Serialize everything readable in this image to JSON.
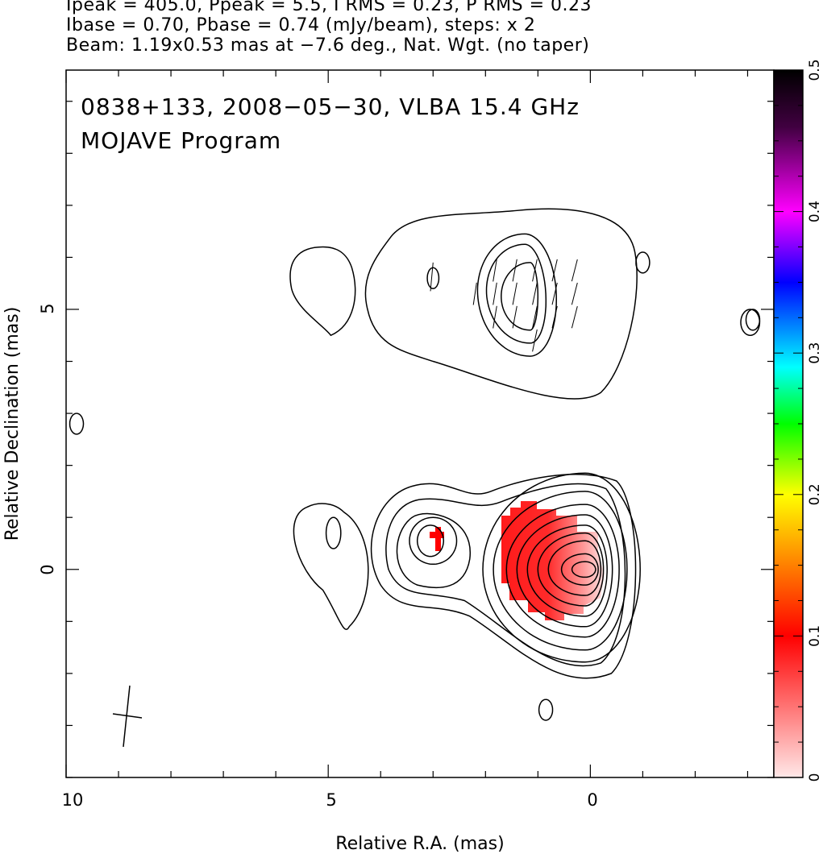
{
  "header": {
    "line1": "Ipeak = 405.0, Ppeak = 5.5, I RMS = 0.23, P RMS = 0.23",
    "line2": "Ibase = 0.70, Pbase = 0.74 (mJy/beam), steps: x 2",
    "line3": "Beam: 1.19x0.53 mas at −7.6 deg., Nat. Wgt. (no taper)"
  },
  "chart_data": {
    "type": "heatmap",
    "title": "0838+133, 2008−05−30, VLBA 15.4 GHz",
    "subtitle": "MOJAVE Program",
    "xlabel": "Relative R.A. (mas)",
    "ylabel": "Relative Declination (mas)",
    "xlim": [
      10,
      -3.5
    ],
    "ylim": [
      -4,
      9.6
    ],
    "x_ticks": [
      10,
      5,
      0
    ],
    "x_tick_labels": [
      "10",
      "5",
      "0"
    ],
    "y_ticks": [
      0,
      5
    ],
    "y_tick_labels": [
      "0",
      "5"
    ],
    "colorbar": {
      "range": [
        0,
        0.5
      ],
      "ticks": [
        0,
        0.1,
        0.2,
        0.3,
        0.4,
        0.5
      ],
      "tick_labels": [
        "0",
        "0.1",
        "0.2",
        "0.3",
        "0.4",
        "0.5"
      ],
      "colors": [
        "#ffe8e8",
        "#ff0000",
        "#ff8000",
        "#ffff00",
        "#00ff00",
        "#00ffff",
        "#0000ff",
        "#ff00ff",
        "#400040",
        "#000000"
      ]
    },
    "contour_sets": [
      {
        "name": "core",
        "center": [
          0.1,
          0.0
        ],
        "levels": [
          [
            -0.85,
            1.95,
            1.85,
            1.78,
            -0.3
          ],
          [
            -0.6,
            1.75,
            1.5,
            1.55,
            -0.25
          ],
          [
            -0.45,
            1.5,
            1.25,
            1.3,
            -0.2
          ],
          [
            -0.32,
            1.3,
            1.05,
            1.1,
            -0.15
          ],
          [
            -0.22,
            1.1,
            0.85,
            0.9,
            -0.12
          ],
          [
            -0.15,
            0.9,
            0.7,
            0.7,
            -0.1
          ],
          [
            -0.1,
            0.7,
            0.55,
            0.5,
            -0.07
          ],
          [
            -0.05,
            0.45,
            0.3,
            0.3,
            -0.05
          ],
          [
            0.0,
            0.25,
            0.15,
            0.15,
            0.0
          ]
        ]
      }
    ],
    "features": {
      "jet_knot": [
        3.0,
        0.55
      ],
      "far_knot": [
        4.9,
        0.7
      ],
      "north_region": [
        1.5,
        5.3
      ],
      "north_knot_west": [
        4.9,
        5.7
      ],
      "small_knot_north": [
        3.0,
        5.6
      ],
      "isolated": [
        [
          9.8,
          2.8
        ],
        [
          -3.1,
          4.8
        ],
        [
          0.85,
          -2.7
        ],
        [
          -1.0,
          5.9
        ]
      ]
    },
    "polarization_region": {
      "x_range": [
        -0.3,
        1.8
      ],
      "y_range": [
        -0.8,
        1.3
      ],
      "peak_value": 0.1
    },
    "beam": {
      "major": 1.19,
      "minor": 0.53,
      "pa_deg": -7.6,
      "center": [
        8.9,
        -2.8
      ]
    }
  }
}
